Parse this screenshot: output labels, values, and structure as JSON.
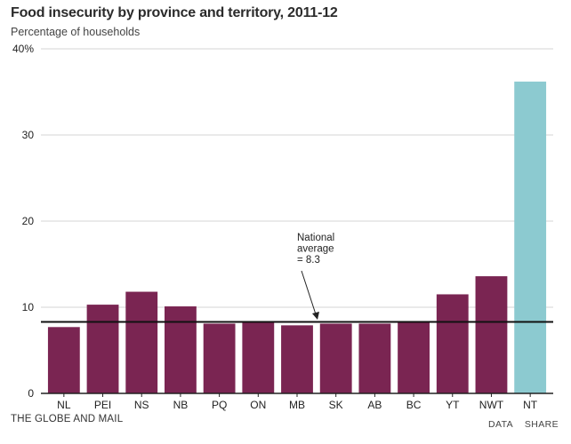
{
  "chart_data": {
    "type": "bar",
    "title": "Food insecurity by province and territory, 2011-12",
    "subtitle": "Percentage of households",
    "xlabel": "",
    "ylabel": "Percentage of households",
    "ylim": [
      0,
      40
    ],
    "yticks": [
      0,
      10,
      20,
      30,
      40
    ],
    "ytick_labels": [
      "0",
      "10",
      "20",
      "30",
      "40%"
    ],
    "categories": [
      "NL",
      "PEI",
      "NS",
      "NB",
      "PQ",
      "ON",
      "MB",
      "SK",
      "AB",
      "BC",
      "YT",
      "NWT",
      "NT"
    ],
    "values": [
      7.7,
      10.3,
      11.8,
      10.1,
      8.1,
      8.2,
      7.9,
      8.1,
      8.1,
      8.3,
      11.5,
      13.6,
      36.2
    ],
    "highlight_category": "NT",
    "reference_line": {
      "value": 8.3,
      "label_lines": [
        "National",
        "average",
        "= 8.3"
      ]
    },
    "colors": {
      "bar": "#7a2552",
      "highlight": "#8ccad0",
      "grid": "#d4d4d4",
      "reference": "#111111",
      "axis": "#222222"
    },
    "grid": true
  },
  "footer": {
    "source": "THE GLOBE AND MAIL",
    "data_label": "DATA",
    "share_label": "SHARE"
  }
}
